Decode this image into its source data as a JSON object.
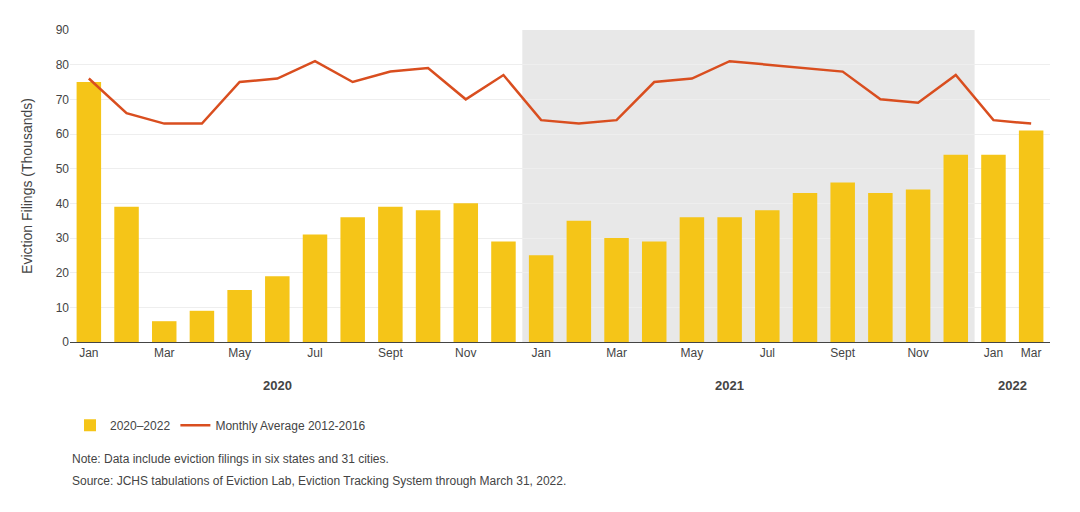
{
  "chart_data": {
    "type": "bar",
    "ylabel": "Eviction Filings (Thousands)",
    "categories": [
      "Jan",
      null,
      "Mar",
      null,
      "May",
      null,
      "Jul",
      null,
      "Sept",
      null,
      "Nov",
      null,
      "Jan",
      null,
      "Mar",
      null,
      "May",
      null,
      "Jul",
      null,
      "Sept",
      null,
      "Nov",
      null,
      "Jan",
      "Mar"
    ],
    "series": [
      {
        "name": "2020–2022",
        "type": "bar",
        "color": "#F5C518",
        "values": [
          75,
          39,
          6,
          9,
          15,
          19,
          31,
          36,
          39,
          38,
          40,
          29,
          25,
          35,
          30,
          29,
          36,
          36,
          38,
          43,
          46,
          43,
          44,
          54,
          54,
          61
        ]
      },
      {
        "name": "Monthly Average 2012-2016",
        "type": "line",
        "color": "#D94E1F",
        "values": [
          76,
          66,
          63,
          63,
          75,
          76,
          81,
          75,
          78,
          79,
          70,
          77,
          64,
          63,
          64,
          75,
          76,
          81,
          80,
          79,
          78,
          70,
          69,
          77,
          64,
          63
        ]
      }
    ],
    "ylim": [
      0,
      90
    ],
    "yticks": [
      0,
      10,
      20,
      30,
      40,
      50,
      60,
      70,
      80,
      90
    ],
    "grid": true,
    "legend": "bottom",
    "annotations": [
      {
        "text": "2020",
        "x": 5
      },
      {
        "text": "2021",
        "x": 17
      },
      {
        "text": "2022",
        "x": 24.5
      }
    ],
    "shaded_range": [
      11.5,
      23.5
    ],
    "shade_color": "#E8E8E8",
    "notes": [
      "Note: Data include eviction filings in six states and 31 cities.",
      "Source: JCHS tabulations of Eviction Lab, Eviction Tracking System through March 31, 2022."
    ]
  }
}
